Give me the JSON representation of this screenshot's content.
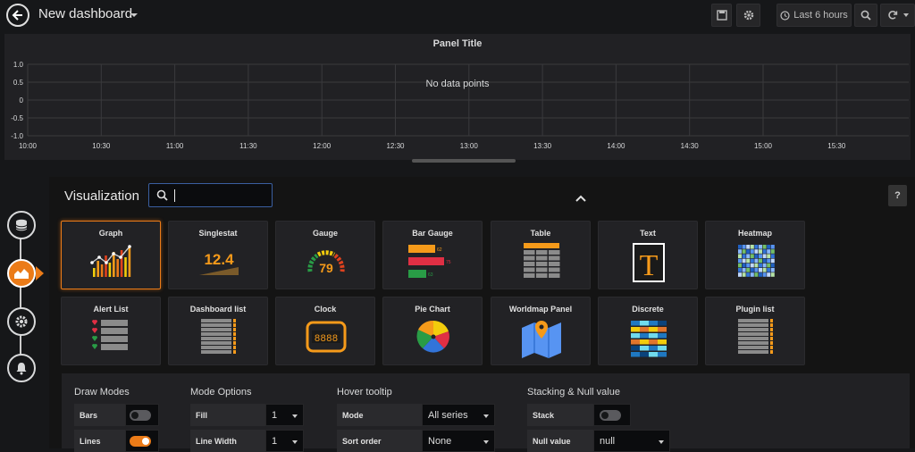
{
  "topbar": {
    "title": "New dashboard",
    "time_range_label": "Last 6 hours"
  },
  "panel": {
    "title": "Panel Title",
    "no_data": "No data points",
    "y_ticks": [
      "1.0",
      "0.5",
      "0",
      "-0.5",
      "-1.0"
    ],
    "x_ticks": [
      "10:00",
      "10:30",
      "11:00",
      "11:30",
      "12:00",
      "12:30",
      "13:00",
      "13:30",
      "14:00",
      "14:30",
      "15:00",
      "15:30"
    ]
  },
  "visualization": {
    "label": "Visualization",
    "search_value": "",
    "help_label": "?",
    "cards": [
      {
        "label": "Graph",
        "icon": "graph-icon",
        "selected": true
      },
      {
        "label": "Singlestat",
        "icon": "singlestat-icon"
      },
      {
        "label": "Gauge",
        "icon": "gauge-icon"
      },
      {
        "label": "Bar Gauge",
        "icon": "bar-gauge-icon"
      },
      {
        "label": "Table",
        "icon": "table-icon"
      },
      {
        "label": "Text",
        "icon": "text-icon"
      },
      {
        "label": "Heatmap",
        "icon": "heatmap-icon"
      },
      {
        "label": "Alert List",
        "icon": "alert-list-icon"
      },
      {
        "label": "Dashboard list",
        "icon": "dashboard-list-icon"
      },
      {
        "label": "Clock",
        "icon": "clock-icon"
      },
      {
        "label": "Pie Chart",
        "icon": "pie-chart-icon"
      },
      {
        "label": "Worldmap Panel",
        "icon": "worldmap-icon"
      },
      {
        "label": "Discrete",
        "icon": "discrete-icon"
      },
      {
        "label": "Plugin list",
        "icon": "plugin-list-icon"
      }
    ],
    "singlestat_value": "12.4",
    "gauge_value": "79",
    "bar_gauge_values": [
      "62",
      "75",
      "63"
    ],
    "text_letter": "T",
    "clock_digits": "8888"
  },
  "options": {
    "draw_modes": {
      "title": "Draw Modes",
      "bars_label": "Bars",
      "bars_on": false,
      "lines_label": "Lines",
      "lines_on": true
    },
    "mode_options": {
      "title": "Mode Options",
      "fill_label": "Fill",
      "fill_value": "1",
      "line_width_label": "Line Width",
      "line_width_value": "1"
    },
    "hover_tooltip": {
      "title": "Hover tooltip",
      "mode_label": "Mode",
      "mode_value": "All series",
      "sort_label": "Sort order",
      "sort_value": "None"
    },
    "stacking": {
      "title": "Stacking & Null value",
      "stack_label": "Stack",
      "stack_on": false,
      "null_label": "Null value",
      "null_value": "null"
    }
  },
  "colors": {
    "accent": "#eb7b18",
    "background": "#161719",
    "panel": "#212124"
  }
}
